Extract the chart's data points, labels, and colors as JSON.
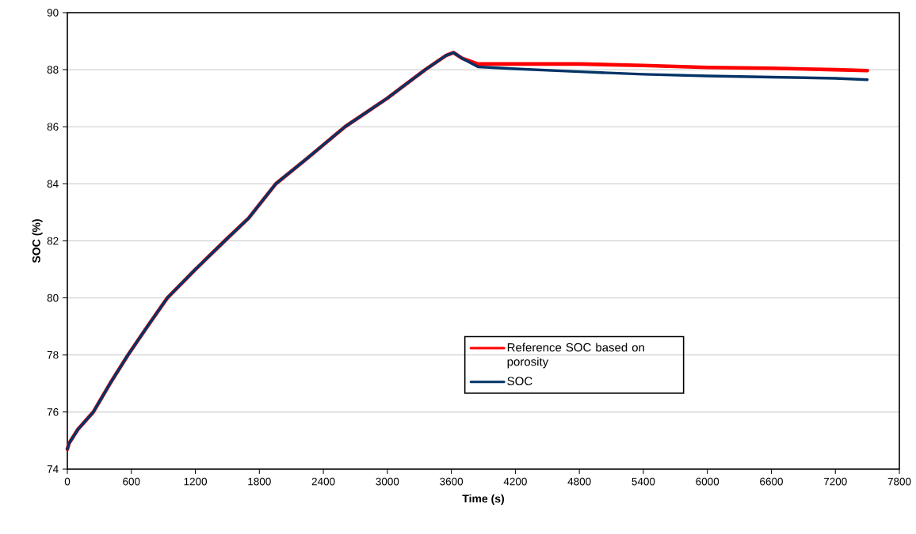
{
  "chart_data": {
    "type": "line",
    "xlabel": "Time (s)",
    "ylabel": "SOC (%)",
    "xlim": [
      0,
      7800
    ],
    "xticks": [
      0,
      600,
      1200,
      1800,
      2400,
      3000,
      3600,
      4200,
      4800,
      5400,
      6000,
      6600,
      7200,
      7800
    ],
    "ylim": [
      74,
      90
    ],
    "yticks": [
      74,
      76,
      78,
      80,
      82,
      84,
      86,
      88,
      90
    ],
    "grid": "y",
    "legend": "center",
    "marker": "none",
    "line_style": "solid",
    "series": [
      {
        "name": "Reference SOC based on porosity",
        "color": "#ff0000",
        "x": [
          0,
          15,
          100,
          243,
          400,
          568,
          750,
          937,
          1200,
          1475,
          1700,
          1954,
          2250,
          2603,
          3000,
          3355,
          3550,
          3620,
          3700,
          3850,
          4200,
          4800,
          5400,
          6000,
          6600,
          7200,
          7500
        ],
        "values": [
          74.7,
          74.9,
          75.4,
          76,
          77,
          78,
          79,
          80,
          81,
          82,
          82.8,
          84,
          84.9,
          86,
          87,
          88,
          88.5,
          88.6,
          88.4,
          88.2,
          88.2,
          88.2,
          88.15,
          88.08,
          88.05,
          88.0,
          87.97
        ]
      },
      {
        "name": "SOC",
        "color": "#003366",
        "x": [
          0,
          15,
          100,
          243,
          400,
          568,
          750,
          937,
          1200,
          1475,
          1700,
          1954,
          2250,
          2603,
          3000,
          3355,
          3550,
          3620,
          3700,
          3850,
          4200,
          4800,
          5400,
          6000,
          6600,
          7200,
          7500
        ],
        "values": [
          74.7,
          74.9,
          75.4,
          76,
          77,
          78,
          79,
          80,
          81,
          82,
          82.8,
          84,
          84.9,
          86,
          87,
          88,
          88.5,
          88.6,
          88.4,
          88.1,
          88.03,
          87.93,
          87.84,
          87.78,
          87.74,
          87.7,
          87.65
        ]
      }
    ]
  }
}
